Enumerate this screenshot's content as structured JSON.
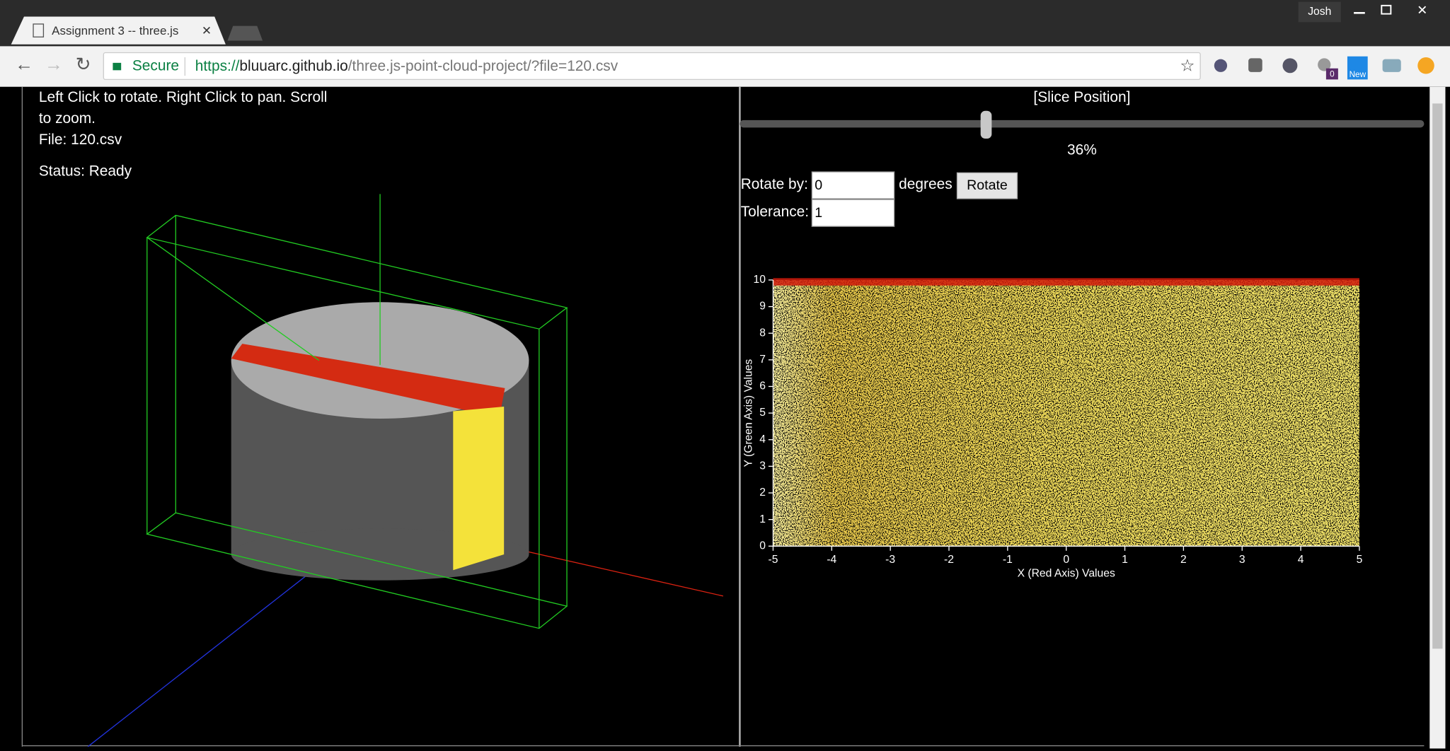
{
  "window": {
    "user": "Josh"
  },
  "tab": {
    "title": "Assignment 3 -- three.js"
  },
  "address_bar": {
    "secure_label": "Secure",
    "url_scheme": "https://",
    "url_host": "bluuarc.github.io",
    "url_path": "/three.js-point-cloud-project/?file=120.csv"
  },
  "extensions": {
    "badge_count": "0",
    "new_badge": "New"
  },
  "left_panel": {
    "instructions_line1": "Left Click to rotate. Right Click to pan. Scroll",
    "instructions_line2": "to zoom.",
    "file": "File: 120.csv",
    "status": "Status: Ready"
  },
  "right_panel": {
    "slider": {
      "label": "[Slice Position]",
      "value": 36,
      "value_label": "36%"
    },
    "rotate_label": "Rotate by:",
    "rotate_value": "0",
    "rotate_unit": "degrees",
    "rotate_button": "Rotate",
    "tolerance_label": "Tolerance:",
    "tolerance_value": "1"
  },
  "chart_data": {
    "type": "scatter",
    "x_label": "X (Red Axis) Values",
    "y_label": "Y (Green Axis) Values",
    "xlim": [
      -5,
      5
    ],
    "ylim": [
      0,
      10
    ],
    "xticks": [
      -5,
      -4,
      -3,
      -2,
      -1,
      0,
      1,
      2,
      3,
      4,
      5
    ],
    "yticks": [
      0,
      1,
      2,
      3,
      4,
      5,
      6,
      7,
      8,
      9,
      10
    ]
  }
}
